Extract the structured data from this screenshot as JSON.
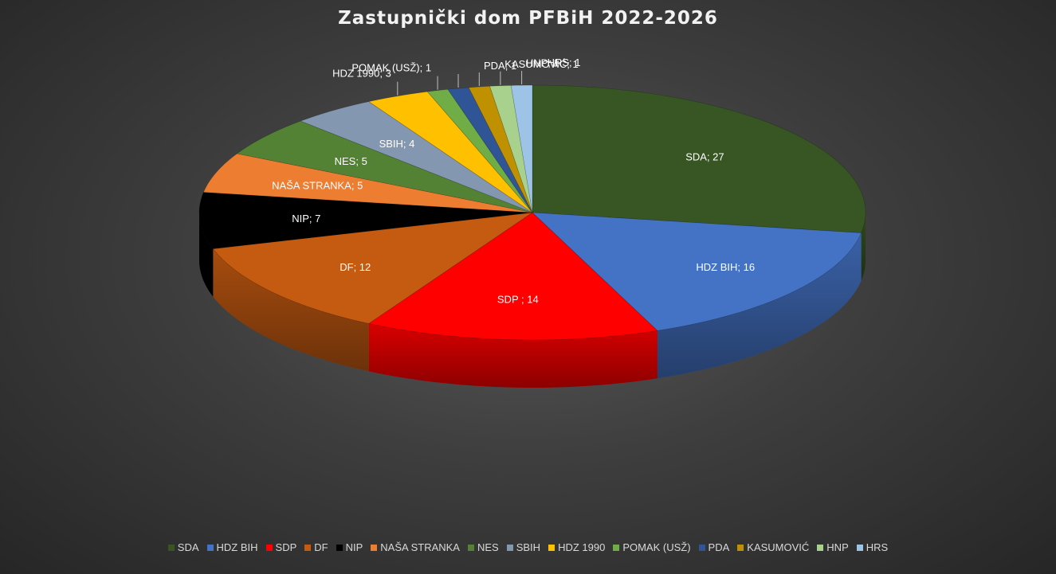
{
  "chart_data": {
    "type": "pie",
    "style": "3d",
    "title": "Zastupnički  dom  PFBiH  2022-2026",
    "legend_position": "bottom",
    "slices": [
      {
        "name": "SDA",
        "value": 27,
        "label": "SDA; 27",
        "color": "#375623"
      },
      {
        "name": "HDZ BIH",
        "value": 16,
        "label": "HDZ BIH; 16",
        "color": "#4472c4"
      },
      {
        "name": "SDP",
        "value": 14,
        "label": "SDP ; 14",
        "color": "#ff0000"
      },
      {
        "name": "DF",
        "value": 12,
        "label": "DF; 12",
        "color": "#c55a11"
      },
      {
        "name": "NIP",
        "value": 7,
        "label": "NIP; 7",
        "color": "#000000"
      },
      {
        "name": "NAŠA STRANKA",
        "value": 5,
        "label": "NAŠA STRANKA; 5",
        "color": "#ed7d31"
      },
      {
        "name": "NES",
        "value": 5,
        "label": "NES; 5",
        "color": "#548235"
      },
      {
        "name": "SBIH",
        "value": 4,
        "label": "SBIH; 4",
        "color": "#8497b0"
      },
      {
        "name": "HDZ 1990",
        "value": 3,
        "label": "HDZ 1990; 3",
        "color": "#ffc000"
      },
      {
        "name": "POMAK (USŽ)",
        "value": 1,
        "label": "POMAK (USŽ); 1",
        "color": "#70ad47"
      },
      {
        "name": "PDA",
        "value": 1,
        "label": "PDA; 1",
        "color": "#2f5597"
      },
      {
        "name": "KASUMOVIĆ",
        "value": 1,
        "label": "KASUMOVIĆ; 1",
        "color": "#bf9000"
      },
      {
        "name": "HNP",
        "value": 1,
        "label": "HNP; 1",
        "color": "#a9d18e"
      },
      {
        "name": "HRS",
        "value": 1,
        "label": "HRS; 1",
        "color": "#9dc3e6"
      }
    ]
  }
}
